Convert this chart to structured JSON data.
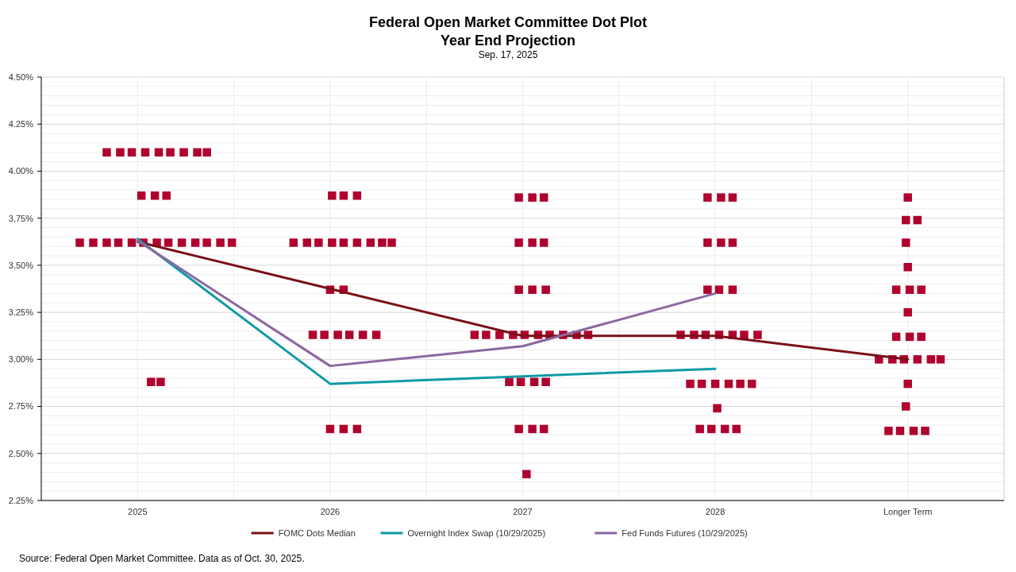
{
  "chart_data": {
    "type": "scatter",
    "title": "Federal Open Market Committee Dot Plot\nYear End Projection",
    "subtitle": "Sep. 17, 2025",
    "annotations": [
      "Source: Federal Open Market Committee. Data as of Oct. 30, 2025."
    ],
    "xlim": [
      2024.5,
      2029.5
    ],
    "xticks": [
      {
        "value": 2024.5,
        "label": null
      },
      2025,
      {
        "value": 2025.5,
        "label": null
      },
      2026,
      {
        "value": 2026.5,
        "label": null
      },
      2027,
      {
        "value": 2027.5,
        "label": null
      },
      2028,
      {
        "value": 2028.5,
        "label": null
      },
      {
        "value": 2029,
        "label": "Longer Term"
      },
      {
        "value": 2029.5,
        "label": null
      }
    ],
    "ylim": [
      2.25,
      4.5
    ],
    "yticks": [
      {
        "value": 2.25,
        "label": "2.25%"
      },
      {
        "value": 2.3,
        "label": null
      },
      {
        "value": 2.35,
        "label": null
      },
      {
        "value": 2.4,
        "label": null
      },
      {
        "value": 2.45,
        "label": null
      },
      {
        "value": 2.5,
        "label": "2.50%"
      },
      {
        "value": 2.55,
        "label": null
      },
      {
        "value": 2.6,
        "label": null
      },
      {
        "value": 2.65,
        "label": null
      },
      {
        "value": 2.7,
        "label": null
      },
      {
        "value": 2.75,
        "label": "2.75%"
      },
      {
        "value": 2.8,
        "label": null
      },
      {
        "value": 2.85,
        "label": null
      },
      {
        "value": 2.9,
        "label": null
      },
      {
        "value": 2.95,
        "label": null
      },
      {
        "value": 3,
        "label": "3.00%"
      },
      {
        "value": 3.05,
        "label": null
      },
      {
        "value": 3.1,
        "label": null
      },
      {
        "value": 3.15,
        "label": null
      },
      {
        "value": 3.2,
        "label": null
      },
      {
        "value": 3.25,
        "label": "3.25%"
      },
      {
        "value": 3.3,
        "label": null
      },
      {
        "value": 3.35,
        "label": null
      },
      {
        "value": 3.4,
        "label": null
      },
      {
        "value": 3.45,
        "label": null
      },
      {
        "value": 3.5,
        "label": "3.50%"
      },
      {
        "value": 3.55,
        "label": null
      },
      {
        "value": 3.6,
        "label": null
      },
      {
        "value": 3.65,
        "label": null
      },
      {
        "value": 3.7,
        "label": null
      },
      {
        "value": 3.75,
        "label": "3.75%"
      },
      {
        "value": 3.8,
        "label": null
      },
      {
        "value": 3.85,
        "label": null
      },
      {
        "value": 3.9,
        "label": null
      },
      {
        "value": 3.95,
        "label": null
      },
      {
        "value": 4,
        "label": "4.00%"
      },
      {
        "value": 4.05,
        "label": null
      },
      {
        "value": 4.1,
        "label": null
      },
      {
        "value": 4.15,
        "label": null
      },
      {
        "value": 4.2,
        "label": null
      },
      {
        "value": 4.25,
        "label": "4.25%"
      },
      {
        "value": 4.3,
        "label": null
      },
      {
        "value": 4.35,
        "label": null
      },
      {
        "value": 4.4,
        "label": null
      },
      {
        "value": 4.45,
        "label": null
      },
      {
        "value": 4.5,
        "label": "4.50%"
      }
    ],
    "grid": true,
    "legend": "bottom",
    "series": [
      {
        "color": "#b0002e",
        "marker": "square",
        "x": [
          2024.84,
          2024.91,
          2024.97,
          2025.04,
          2025.11,
          2025.17,
          2025.24,
          2025.31,
          2025.36,
          2025.02,
          2025.09,
          2025.15,
          2024.7,
          2024.77,
          2024.84,
          2024.9,
          2024.97,
          2025.03,
          2025.1,
          2025.16,
          2025.23,
          2025.3,
          2025.36,
          2025.43,
          2025.49,
          2025.07,
          2025.12,
          2026.01,
          2026.07,
          2026.14,
          2025.81,
          2025.88,
          2025.94,
          2026.01,
          2026.07,
          2026.14,
          2026.21,
          2026.27,
          2026.32,
          2026.0,
          2026.07,
          2025.91,
          2025.97,
          2026.04,
          2026.1,
          2026.17,
          2026.24,
          2026.0,
          2026.07,
          2026.14,
          2026.98,
          2027.05,
          2027.11,
          2026.98,
          2027.05,
          2027.11,
          2026.98,
          2027.05,
          2027.12,
          2026.75,
          2026.81,
          2026.88,
          2026.95,
          2027.01,
          2027.08,
          2027.14,
          2027.21,
          2027.28,
          2027.34,
          2026.93,
          2026.99,
          2027.06,
          2027.12,
          2026.98,
          2027.05,
          2027.11,
          2027.02,
          2027.96,
          2028.03,
          2028.09,
          2027.96,
          2028.03,
          2028.09,
          2027.96,
          2028.02,
          2028.09,
          2027.82,
          2027.89,
          2027.95,
          2028.02,
          2028.09,
          2028.15,
          2028.22,
          2027.87,
          2027.93,
          2028.0,
          2028.07,
          2028.13,
          2028.19,
          2028.01,
          2027.92,
          2027.98,
          2028.05,
          2028.11,
          2029.0,
          2028.99,
          2029.05,
          2028.99,
          2029.0,
          2028.94,
          2029.01,
          2029.07,
          2029.0,
          2028.94,
          2029.01,
          2029.07,
          2028.85,
          2028.92,
          2028.98,
          2029.05,
          2029.12,
          2029.17,
          2029.0,
          2028.99,
          2028.9,
          2028.96,
          2029.03,
          2029.09
        ],
        "values": [
          4.1,
          4.1,
          4.1,
          4.1,
          4.1,
          4.1,
          4.1,
          4.1,
          4.1,
          3.87,
          3.87,
          3.87,
          3.62,
          3.62,
          3.62,
          3.62,
          3.62,
          3.62,
          3.62,
          3.62,
          3.62,
          3.62,
          3.62,
          3.62,
          3.62,
          2.88,
          2.88,
          3.87,
          3.87,
          3.87,
          3.62,
          3.62,
          3.62,
          3.62,
          3.62,
          3.62,
          3.62,
          3.62,
          3.62,
          3.37,
          3.37,
          3.13,
          3.13,
          3.13,
          3.13,
          3.13,
          3.13,
          2.63,
          2.63,
          2.63,
          3.86,
          3.86,
          3.86,
          3.62,
          3.62,
          3.62,
          3.37,
          3.37,
          3.37,
          3.13,
          3.13,
          3.13,
          3.13,
          3.13,
          3.13,
          3.13,
          3.13,
          3.13,
          3.13,
          2.88,
          2.88,
          2.88,
          2.88,
          2.63,
          2.63,
          2.63,
          2.39,
          3.86,
          3.86,
          3.86,
          3.62,
          3.62,
          3.62,
          3.37,
          3.37,
          3.37,
          3.13,
          3.13,
          3.13,
          3.13,
          3.13,
          3.13,
          3.13,
          2.87,
          2.87,
          2.87,
          2.87,
          2.87,
          2.87,
          2.74,
          2.63,
          2.63,
          2.63,
          2.63,
          3.86,
          3.74,
          3.74,
          3.62,
          3.49,
          3.37,
          3.37,
          3.37,
          3.25,
          3.12,
          3.12,
          3.12,
          3.0,
          3.0,
          3.0,
          3.0,
          3.0,
          3.0,
          2.87,
          2.75,
          2.62,
          2.62,
          2.62,
          2.62
        ]
      },
      {
        "type": "line",
        "name": "FOMC Dots Median",
        "color": "#7a1018",
        "x": [
          2025,
          2026,
          2027,
          2028,
          2029
        ],
        "values": [
          3.625,
          3.375,
          3.125,
          3.125,
          3.0
        ]
      },
      {
        "type": "line",
        "name": "Overnight Index Swap (10/29/2025)",
        "color": "#0e9aa7",
        "x": [
          2025,
          2026,
          2027,
          2028
        ],
        "values": [
          3.64,
          2.87,
          2.91,
          2.95
        ]
      },
      {
        "type": "line",
        "name": "Fed Funds Futures (10/29/2025)",
        "color": "#8a67a0",
        "x": [
          2025,
          2026,
          2027,
          2028
        ],
        "values": [
          3.63,
          2.965,
          3.07,
          3.35
        ]
      }
    ]
  }
}
